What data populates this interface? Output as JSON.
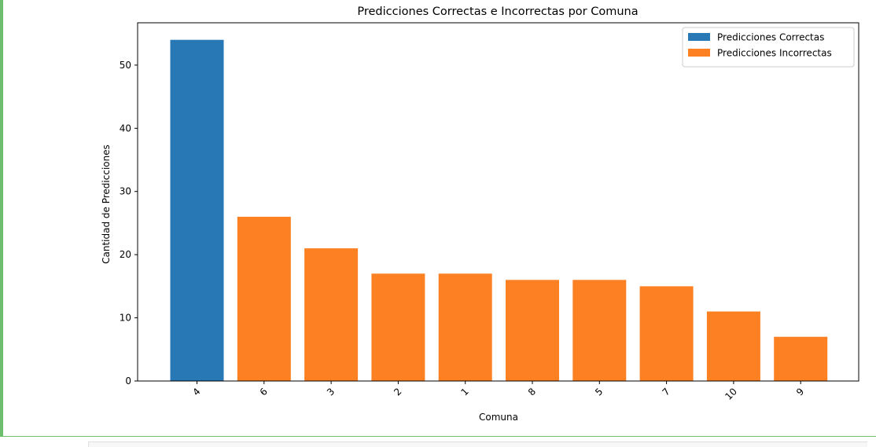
{
  "chart_data": {
    "type": "bar",
    "title": "Predicciones Correctas e Incorrectas por Comuna",
    "xlabel": "Comuna",
    "ylabel": "Cantidad de Predicciones",
    "categories": [
      "4",
      "6",
      "3",
      "2",
      "1",
      "8",
      "5",
      "7",
      "10",
      "9"
    ],
    "series": [
      {
        "name": "Predicciones Correctas",
        "color": "#2878b5",
        "values": [
          54,
          null,
          null,
          null,
          null,
          null,
          null,
          null,
          null,
          null
        ]
      },
      {
        "name": "Predicciones Incorrectas",
        "color": "#fd8023",
        "values": [
          null,
          26,
          21,
          17,
          17,
          16,
          16,
          15,
          11,
          7
        ]
      }
    ],
    "ylim": [
      0,
      56.7
    ],
    "yticks": [
      0,
      10,
      20,
      30,
      40,
      50
    ],
    "xtick_rotation": 45,
    "legend_position": "top-right",
    "grid": false
  }
}
